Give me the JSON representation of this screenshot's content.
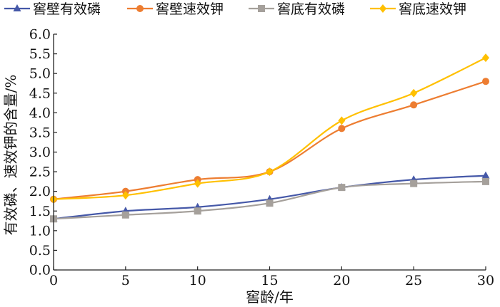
{
  "chart_data": {
    "type": "line",
    "xlabel": "窖龄/年",
    "ylabel": "有效磷、速效钾的含量/%",
    "x": [
      0,
      5,
      10,
      15,
      20,
      25,
      30
    ],
    "xlim": [
      0,
      30
    ],
    "ylim": [
      0.0,
      6.0
    ],
    "x_ticks": [
      "0",
      "5",
      "10",
      "15",
      "20",
      "25",
      "30"
    ],
    "y_ticks": [
      "0.0",
      "0.5",
      "1.0",
      "1.5",
      "2.0",
      "2.5",
      "3.0",
      "3.5",
      "4.0",
      "4.5",
      "5.0",
      "5.5",
      "6.0"
    ],
    "grid": false,
    "legend_position": "top",
    "series": [
      {
        "name": "窖壁有效磷",
        "color": "#4558a8",
        "marker": "triangle",
        "values": [
          1.3,
          1.5,
          1.6,
          1.8,
          2.1,
          2.3,
          2.4
        ]
      },
      {
        "name": "窖壁速效钾",
        "color": "#ed7d31",
        "marker": "circle",
        "values": [
          1.8,
          2.0,
          2.3,
          2.5,
          3.6,
          4.2,
          4.8
        ]
      },
      {
        "name": "窖底有效磷",
        "color": "#a5a09b",
        "marker": "square",
        "values": [
          1.3,
          1.4,
          1.5,
          1.7,
          2.1,
          2.2,
          2.25
        ]
      },
      {
        "name": "窖底速效钾",
        "color": "#ffc000",
        "marker": "diamond",
        "values": [
          1.8,
          1.9,
          2.2,
          2.5,
          3.8,
          4.5,
          5.4
        ]
      }
    ]
  }
}
